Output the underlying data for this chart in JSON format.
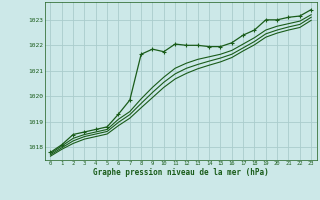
{
  "title": "Graphe pression niveau de la mer (hPa)",
  "background_color": "#cce8e8",
  "grid_color": "#aacccc",
  "line_color": "#1a5c1a",
  "text_color": "#1a5c1a",
  "xlim": [
    -0.5,
    23.5
  ],
  "ylim": [
    1017.5,
    1023.7
  ],
  "yticks": [
    1018,
    1019,
    1020,
    1021,
    1022,
    1023
  ],
  "xticks": [
    0,
    1,
    2,
    3,
    4,
    5,
    6,
    7,
    8,
    9,
    10,
    11,
    12,
    13,
    14,
    15,
    16,
    17,
    18,
    19,
    20,
    21,
    22,
    23
  ],
  "series": [
    {
      "x": [
        0,
        1,
        2,
        3,
        4,
        5,
        6,
        7,
        8,
        9,
        10,
        11,
        12,
        13,
        14,
        15,
        16,
        17,
        18,
        19,
        20,
        21,
        22,
        23
      ],
      "y": [
        1017.8,
        1018.1,
        1018.5,
        1018.6,
        1018.7,
        1018.8,
        1019.3,
        1019.85,
        1021.65,
        1021.85,
        1021.75,
        1022.05,
        1022.0,
        1022.0,
        1021.95,
        1021.95,
        1022.1,
        1022.4,
        1022.6,
        1023.0,
        1023.0,
        1023.1,
        1023.15,
        1023.4
      ],
      "marker": true,
      "linewidth": 0.9
    },
    {
      "x": [
        0,
        1,
        2,
        3,
        4,
        5,
        6,
        7,
        8,
        9,
        10,
        11,
        12,
        13,
        14,
        15,
        16,
        17,
        18,
        19,
        20,
        21,
        22,
        23
      ],
      "y": [
        1017.75,
        1018.05,
        1018.35,
        1018.5,
        1018.6,
        1018.7,
        1019.1,
        1019.4,
        1019.9,
        1020.35,
        1020.75,
        1021.1,
        1021.3,
        1021.45,
        1021.55,
        1021.65,
        1021.8,
        1022.05,
        1022.3,
        1022.6,
        1022.75,
        1022.85,
        1022.95,
        1023.2
      ],
      "marker": false,
      "linewidth": 0.8
    },
    {
      "x": [
        0,
        1,
        2,
        3,
        4,
        5,
        6,
        7,
        8,
        9,
        10,
        11,
        12,
        13,
        14,
        15,
        16,
        17,
        18,
        19,
        20,
        21,
        22,
        23
      ],
      "y": [
        1017.7,
        1017.98,
        1018.25,
        1018.42,
        1018.52,
        1018.62,
        1018.98,
        1019.28,
        1019.72,
        1020.15,
        1020.55,
        1020.88,
        1021.1,
        1021.25,
        1021.38,
        1021.5,
        1021.65,
        1021.9,
        1022.15,
        1022.45,
        1022.6,
        1022.72,
        1022.82,
        1023.1
      ],
      "marker": false,
      "linewidth": 0.8
    },
    {
      "x": [
        0,
        1,
        2,
        3,
        4,
        5,
        6,
        7,
        8,
        9,
        10,
        11,
        12,
        13,
        14,
        15,
        16,
        17,
        18,
        19,
        20,
        21,
        22,
        23
      ],
      "y": [
        1017.65,
        1017.92,
        1018.15,
        1018.32,
        1018.42,
        1018.52,
        1018.85,
        1019.14,
        1019.55,
        1019.95,
        1020.35,
        1020.68,
        1020.9,
        1021.08,
        1021.22,
        1021.35,
        1021.52,
        1021.78,
        1022.02,
        1022.32,
        1022.48,
        1022.6,
        1022.7,
        1022.98
      ],
      "marker": false,
      "linewidth": 0.8
    }
  ]
}
